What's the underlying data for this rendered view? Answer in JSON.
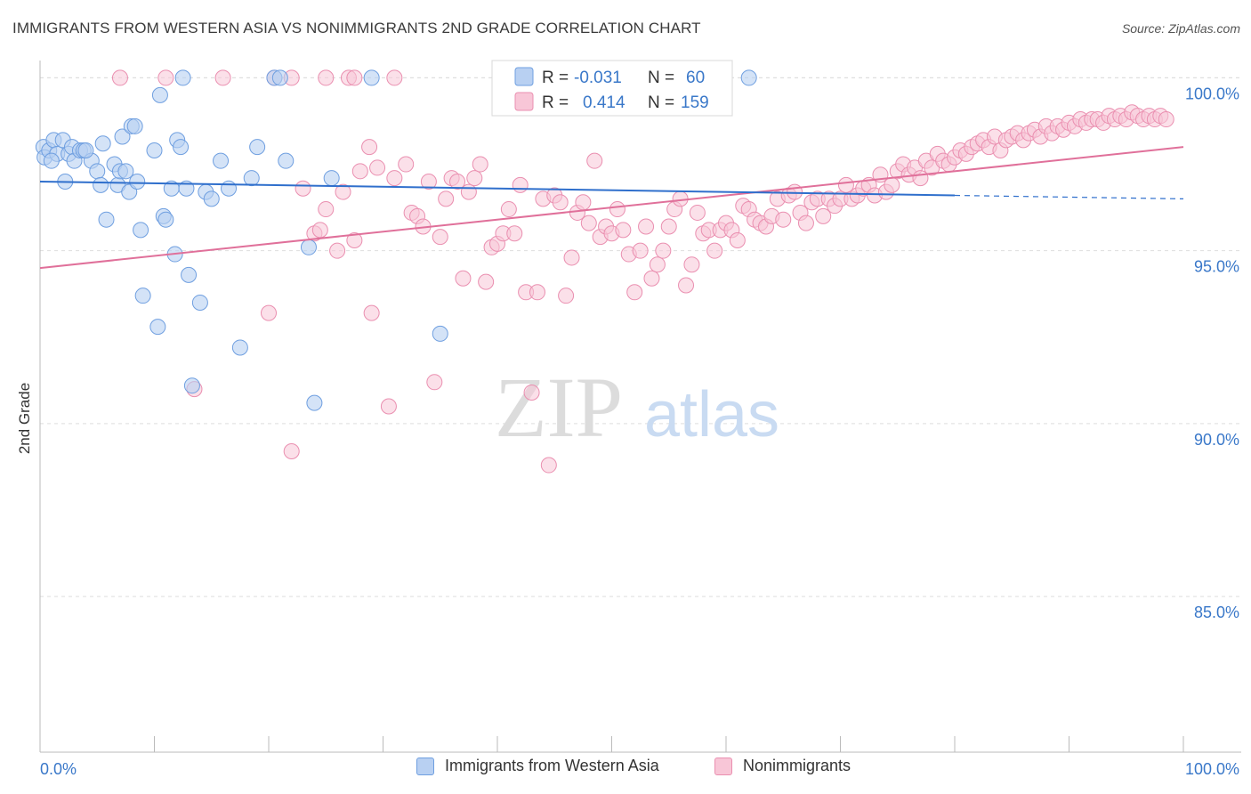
{
  "title": "IMMIGRANTS FROM WESTERN ASIA VS NONIMMIGRANTS 2ND GRADE CORRELATION CHART",
  "source": "Source: ZipAtlas.com",
  "watermark": {
    "zip": "ZIP",
    "atlas": "atlas"
  },
  "colors": {
    "blue": "#6f9fe0",
    "blue_fill": "#b8d0f2",
    "blue_line": "#2f6fcc",
    "pink": "#ea8fb0",
    "pink_fill": "#f8c6d7",
    "pink_line": "#e0709a",
    "axis_text": "#3a78c9",
    "grid": "#dddddd"
  },
  "legend_stats": {
    "blue": {
      "r_label": "R =",
      "r_value": "-0.031",
      "n_label": "N =",
      "n_value": "60"
    },
    "pink": {
      "r_label": "R =",
      "r_value": "0.414",
      "n_label": "N =",
      "n_value": "159"
    }
  },
  "chart_data": {
    "type": "scatter",
    "title": "IMMIGRANTS FROM WESTERN ASIA VS NONIMMIGRANTS 2ND GRADE CORRELATION CHART",
    "xlabel": "",
    "ylabel": "2nd Grade",
    "xlim": [
      0,
      100
    ],
    "ylim": [
      80.5,
      100.5
    ],
    "x_tick_labels": [
      "0.0%",
      "100.0%"
    ],
    "y_ticks": [
      85,
      90,
      95,
      100
    ],
    "y_tick_labels": [
      "85.0%",
      "90.0%",
      "95.0%",
      "100.0%"
    ],
    "grid": true,
    "legend_position": "bottom",
    "series": [
      {
        "name": "Immigrants from Western Asia",
        "color": "blue",
        "trend": {
          "x": [
            0,
            80,
            100
          ],
          "y": [
            97.0,
            96.6,
            96.5
          ],
          "solid_until": 80
        },
        "points": [
          [
            0.3,
            98.0
          ],
          [
            0.4,
            97.7
          ],
          [
            0.8,
            97.9
          ],
          [
            1.2,
            98.2
          ],
          [
            1.5,
            97.8
          ],
          [
            2.0,
            98.2
          ],
          [
            2.5,
            97.8
          ],
          [
            2.8,
            98.0
          ],
          [
            3.0,
            97.6
          ],
          [
            3.5,
            97.9
          ],
          [
            3.8,
            97.9
          ],
          [
            4.5,
            97.6
          ],
          [
            5.0,
            97.3
          ],
          [
            5.3,
            96.9
          ],
          [
            5.5,
            98.1
          ],
          [
            5.8,
            95.9
          ],
          [
            6.5,
            97.5
          ],
          [
            6.8,
            96.9
          ],
          [
            7.0,
            97.3
          ],
          [
            7.2,
            98.3
          ],
          [
            7.5,
            97.3
          ],
          [
            7.8,
            96.7
          ],
          [
            8.0,
            98.6
          ],
          [
            8.3,
            98.6
          ],
          [
            8.5,
            97.0
          ],
          [
            8.8,
            95.6
          ],
          [
            9.0,
            93.7
          ],
          [
            10.0,
            97.9
          ],
          [
            10.3,
            92.8
          ],
          [
            10.5,
            99.5
          ],
          [
            10.8,
            96.0
          ],
          [
            11.0,
            95.9
          ],
          [
            11.5,
            96.8
          ],
          [
            11.8,
            94.9
          ],
          [
            12.0,
            98.2
          ],
          [
            12.3,
            98.0
          ],
          [
            12.5,
            100.0
          ],
          [
            12.8,
            96.8
          ],
          [
            13.0,
            94.3
          ],
          [
            13.3,
            91.1
          ],
          [
            14.0,
            93.5
          ],
          [
            14.5,
            96.7
          ],
          [
            15.0,
            96.5
          ],
          [
            15.8,
            97.6
          ],
          [
            16.5,
            96.8
          ],
          [
            17.5,
            92.2
          ],
          [
            18.5,
            97.1
          ],
          [
            19.0,
            98.0
          ],
          [
            20.5,
            100.0
          ],
          [
            21.0,
            100.0
          ],
          [
            21.5,
            97.6
          ],
          [
            23.5,
            95.1
          ],
          [
            24.0,
            90.6
          ],
          [
            25.5,
            97.1
          ],
          [
            29.0,
            100.0
          ],
          [
            35.0,
            92.6
          ],
          [
            62.0,
            100.0
          ],
          [
            1.0,
            97.6
          ],
          [
            2.2,
            97.0
          ],
          [
            4.0,
            97.9
          ]
        ]
      },
      {
        "name": "Nonimmigrants",
        "color": "pink",
        "trend": {
          "x": [
            0,
            100
          ],
          "y": [
            94.5,
            98.0
          ]
        },
        "points": [
          [
            7.0,
            100.0
          ],
          [
            11.0,
            100.0
          ],
          [
            16.0,
            100.0
          ],
          [
            20.5,
            100.0
          ],
          [
            22.0,
            100.0
          ],
          [
            25.0,
            100.0
          ],
          [
            27.0,
            100.0
          ],
          [
            27.5,
            100.0
          ],
          [
            31.0,
            100.0
          ],
          [
            13.5,
            91.0
          ],
          [
            20.0,
            93.2
          ],
          [
            22.0,
            89.2
          ],
          [
            23.0,
            96.8
          ],
          [
            24.0,
            95.5
          ],
          [
            24.5,
            95.6
          ],
          [
            25.0,
            96.2
          ],
          [
            26.0,
            95.0
          ],
          [
            26.5,
            96.7
          ],
          [
            27.5,
            95.3
          ],
          [
            28.0,
            97.3
          ],
          [
            28.8,
            98.0
          ],
          [
            29.0,
            93.2
          ],
          [
            29.5,
            97.4
          ],
          [
            30.5,
            90.5
          ],
          [
            31.0,
            97.1
          ],
          [
            32.0,
            97.5
          ],
          [
            32.5,
            96.1
          ],
          [
            33.0,
            96.0
          ],
          [
            33.5,
            95.7
          ],
          [
            34.0,
            97.0
          ],
          [
            34.5,
            91.2
          ],
          [
            35.0,
            95.4
          ],
          [
            35.5,
            96.5
          ],
          [
            36.0,
            97.1
          ],
          [
            36.5,
            97.0
          ],
          [
            37.0,
            94.2
          ],
          [
            37.5,
            96.7
          ],
          [
            38.0,
            97.1
          ],
          [
            38.5,
            97.5
          ],
          [
            39.0,
            94.1
          ],
          [
            39.5,
            95.1
          ],
          [
            40.0,
            95.2
          ],
          [
            40.5,
            95.5
          ],
          [
            41.0,
            96.2
          ],
          [
            41.5,
            95.5
          ],
          [
            42.0,
            96.9
          ],
          [
            42.5,
            93.8
          ],
          [
            43.0,
            90.9
          ],
          [
            43.5,
            93.8
          ],
          [
            44.0,
            96.5
          ],
          [
            44.5,
            88.8
          ],
          [
            45.0,
            96.6
          ],
          [
            45.5,
            96.4
          ],
          [
            46.0,
            93.7
          ],
          [
            46.5,
            94.8
          ],
          [
            47.0,
            96.1
          ],
          [
            47.5,
            96.4
          ],
          [
            48.0,
            95.8
          ],
          [
            48.5,
            97.6
          ],
          [
            49.0,
            95.4
          ],
          [
            49.5,
            95.7
          ],
          [
            50.0,
            95.5
          ],
          [
            50.5,
            96.2
          ],
          [
            51.0,
            95.6
          ],
          [
            51.5,
            94.9
          ],
          [
            52.0,
            93.8
          ],
          [
            52.5,
            95.0
          ],
          [
            53.0,
            95.7
          ],
          [
            53.5,
            94.2
          ],
          [
            54.0,
            94.6
          ],
          [
            54.5,
            95.0
          ],
          [
            55.0,
            95.7
          ],
          [
            55.5,
            96.2
          ],
          [
            56.0,
            96.5
          ],
          [
            56.5,
            94.0
          ],
          [
            57.0,
            94.6
          ],
          [
            57.5,
            96.1
          ],
          [
            58.0,
            95.5
          ],
          [
            58.5,
            95.6
          ],
          [
            59.0,
            95.0
          ],
          [
            59.5,
            95.6
          ],
          [
            60.0,
            95.8
          ],
          [
            60.5,
            95.6
          ],
          [
            61.0,
            95.3
          ],
          [
            61.5,
            96.3
          ],
          [
            62.0,
            96.2
          ],
          [
            62.5,
            95.9
          ],
          [
            63.0,
            95.8
          ],
          [
            63.5,
            95.7
          ],
          [
            64.0,
            96.0
          ],
          [
            64.5,
            96.5
          ],
          [
            65.0,
            95.9
          ],
          [
            65.5,
            96.6
          ],
          [
            66.0,
            96.7
          ],
          [
            66.5,
            96.1
          ],
          [
            67.0,
            95.8
          ],
          [
            67.5,
            96.4
          ],
          [
            68.0,
            96.5
          ],
          [
            68.5,
            96.0
          ],
          [
            69.0,
            96.5
          ],
          [
            69.5,
            96.3
          ],
          [
            70.0,
            96.5
          ],
          [
            70.5,
            96.9
          ],
          [
            71.0,
            96.5
          ],
          [
            71.5,
            96.6
          ],
          [
            72.0,
            96.8
          ],
          [
            72.5,
            96.9
          ],
          [
            73.0,
            96.6
          ],
          [
            73.5,
            97.2
          ],
          [
            74.0,
            96.7
          ],
          [
            74.5,
            96.9
          ],
          [
            75.0,
            97.3
          ],
          [
            75.5,
            97.5
          ],
          [
            76.0,
            97.2
          ],
          [
            76.5,
            97.4
          ],
          [
            77.0,
            97.1
          ],
          [
            77.5,
            97.6
          ],
          [
            78.0,
            97.4
          ],
          [
            78.5,
            97.8
          ],
          [
            79.0,
            97.6
          ],
          [
            79.5,
            97.5
          ],
          [
            80.0,
            97.7
          ],
          [
            80.5,
            97.9
          ],
          [
            81.0,
            97.8
          ],
          [
            81.5,
            98.0
          ],
          [
            82.0,
            98.1
          ],
          [
            82.5,
            98.2
          ],
          [
            83.0,
            98.0
          ],
          [
            83.5,
            98.3
          ],
          [
            84.0,
            97.9
          ],
          [
            84.5,
            98.2
          ],
          [
            85.0,
            98.3
          ],
          [
            85.5,
            98.4
          ],
          [
            86.0,
            98.2
          ],
          [
            86.5,
            98.4
          ],
          [
            87.0,
            98.5
          ],
          [
            87.5,
            98.3
          ],
          [
            88.0,
            98.6
          ],
          [
            88.5,
            98.4
          ],
          [
            89.0,
            98.6
          ],
          [
            89.5,
            98.5
          ],
          [
            90.0,
            98.7
          ],
          [
            90.5,
            98.6
          ],
          [
            91.0,
            98.8
          ],
          [
            91.5,
            98.7
          ],
          [
            92.0,
            98.8
          ],
          [
            92.5,
            98.8
          ],
          [
            93.0,
            98.7
          ],
          [
            93.5,
            98.9
          ],
          [
            94.0,
            98.8
          ],
          [
            94.5,
            98.9
          ],
          [
            95.0,
            98.8
          ],
          [
            95.5,
            99.0
          ],
          [
            96.0,
            98.9
          ],
          [
            96.5,
            98.8
          ],
          [
            97.0,
            98.9
          ],
          [
            97.5,
            98.8
          ],
          [
            98.0,
            98.9
          ],
          [
            98.5,
            98.8
          ]
        ]
      }
    ]
  }
}
